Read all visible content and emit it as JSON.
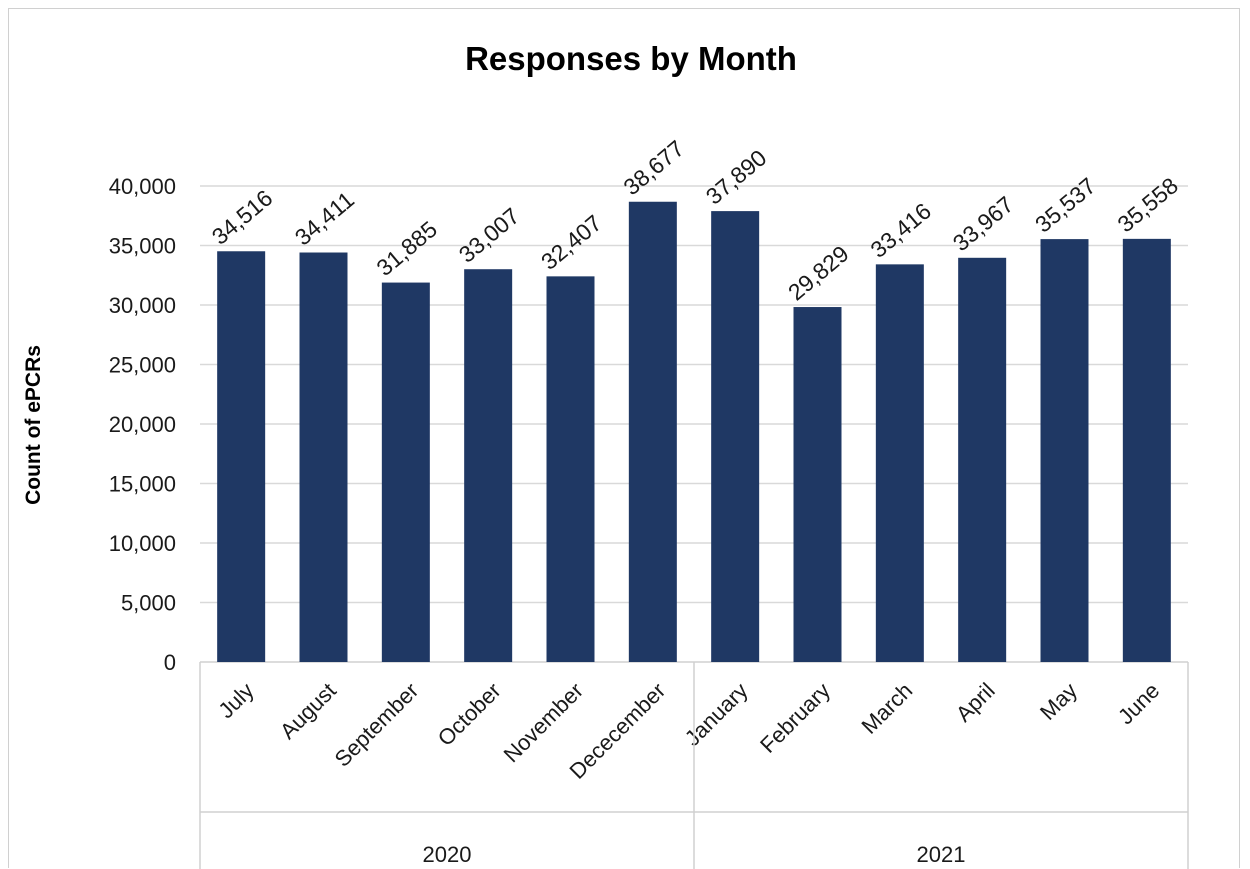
{
  "chart_data": {
    "type": "bar",
    "title": "Responses by Month",
    "ylabel": "Count of ePCRs",
    "xlabel": "",
    "ylim": [
      0,
      40000
    ],
    "yticks": [
      0,
      5000,
      10000,
      15000,
      20000,
      25000,
      30000,
      35000,
      40000
    ],
    "ytick_labels": [
      "0",
      "5,000",
      "10,000",
      "15,000",
      "20,000",
      "25,000",
      "30,000",
      "35,000",
      "40,000"
    ],
    "grid": true,
    "categories": [
      "July",
      "August",
      "September",
      "October",
      "November",
      "Dececember",
      "January",
      "February",
      "March",
      "April",
      "May",
      "June"
    ],
    "values": [
      34516,
      34411,
      31885,
      33007,
      32407,
      38677,
      37890,
      29829,
      33416,
      33967,
      35537,
      35558
    ],
    "data_labels": [
      "34,516",
      "34,411",
      "31,885",
      "33,007",
      "32,407",
      "38,677",
      "37,890",
      "29,829",
      "33,416",
      "33,967",
      "35,537",
      "35,558"
    ],
    "groups": [
      {
        "label": "2020",
        "count": 6
      },
      {
        "label": "2021",
        "count": 6
      }
    ],
    "bar_color": "#1f3864"
  }
}
